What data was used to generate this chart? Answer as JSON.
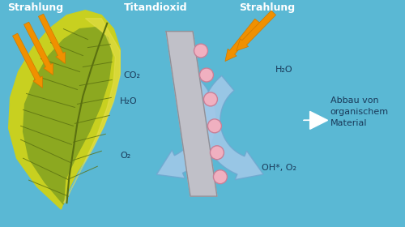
{
  "bg_color": "#5ab8d4",
  "labels": {
    "strahlung_left": "Strahlung",
    "titandioxid": "Titandioxid",
    "strahlung_right": "Strahlung",
    "co2": "CO₂",
    "h2o_left": "H₂O",
    "o2_left": "O₂",
    "h2o_right": "H₂O",
    "oh_o2": "OH*, O₂",
    "abbau": "Abbau von\norganischem\nMaterial"
  },
  "leaf_outer_color": "#c8d020",
  "leaf_inner_color": "#8ca820",
  "leaf_vein_color": "#5a7010",
  "leaf_highlight": "#e8e050",
  "arrow_fill": "#a0c8e8",
  "arrow_edge": "#70a8d0",
  "ray_color_dark": "#d07800",
  "ray_color_mid": "#f09000",
  "ray_color_light": "#f8c000",
  "tio2_fill": "#c0c0c8",
  "tio2_edge": "#909098",
  "ball_fill": "#f0b0c0",
  "ball_edge": "#c88098",
  "white_color": "#ffffff",
  "text_dark": "#1a3a5a",
  "text_white": "#ffffff"
}
